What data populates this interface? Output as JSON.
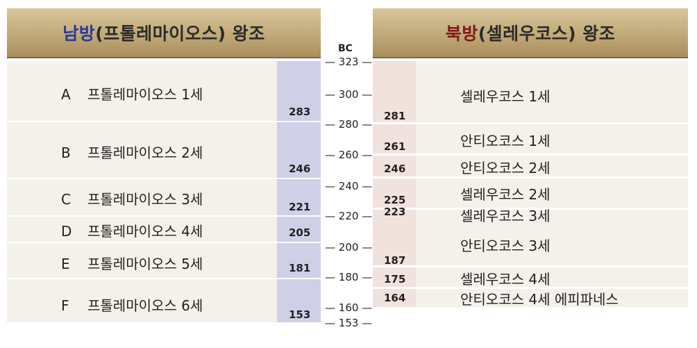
{
  "south": {
    "title_highlight": "남방",
    "title_rest": "(프톨레마이오스) 왕조",
    "rows": [
      {
        "letter": "A",
        "name": "프톨레마이오스 1세",
        "year": "283"
      },
      {
        "letter": "B",
        "name": "프톨레마이오스 2세",
        "year": "246"
      },
      {
        "letter": "C",
        "name": "프톨레마이오스 3세",
        "year": "221"
      },
      {
        "letter": "D",
        "name": "프톨레마이오스 4세",
        "year": "205"
      },
      {
        "letter": "E",
        "name": "프톨레마이오스 5세",
        "year": "181"
      },
      {
        "letter": "F",
        "name": "프톨레마이오스 6세",
        "year": "153"
      }
    ]
  },
  "north": {
    "title_highlight": "북방",
    "title_rest": "(셀레우코스) 왕조",
    "rows": [
      {
        "name": "셀레우코스 1세",
        "year": "281"
      },
      {
        "name": "안티오코스 1세",
        "year": "261"
      },
      {
        "name": "안티오코스 2세",
        "year": "246"
      },
      {
        "name": "셀레우코스 2세",
        "year": "225"
      },
      {
        "name": "셀레우코스 3세",
        "year": "223"
      },
      {
        "name": "안티오코스 3세",
        "year": "187"
      },
      {
        "name": "셀레우코스 4세",
        "year": "175"
      },
      {
        "name": "안티오코스 4세 에피파네스",
        "year": "164"
      }
    ]
  },
  "axis": {
    "label": "BC",
    "ticks": [
      "323",
      "300",
      "280",
      "260",
      "240",
      "220",
      "200",
      "180",
      "160",
      "153"
    ]
  }
}
